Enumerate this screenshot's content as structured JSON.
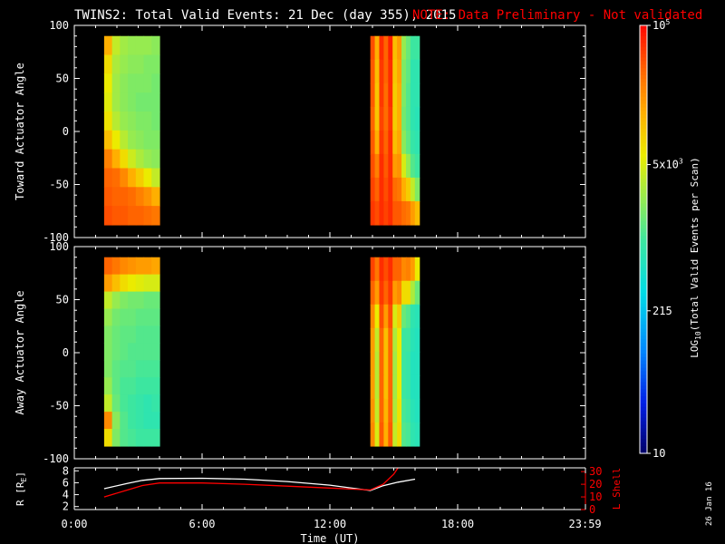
{
  "title": "TWINS2: Total Valid Events: 21 Dec (day 355), 2015",
  "note": "NOTE: Data Preliminary - Not validated",
  "stamp": "26 Jan 16",
  "colors": {
    "background": "#000000",
    "axes": "#ffffff",
    "note": "#ff0000",
    "r_line": "#ffffff",
    "lshell_line": "#ff0000"
  },
  "colorbar": {
    "label": "LOG10(Total Valid Events per Scan)",
    "label_main": "LOG",
    "label_sub": "10",
    "label_rest": "(Total Valid Events per Scan)",
    "scale": "log",
    "range": [
      10,
      100000
    ],
    "ticks": [
      {
        "value": 100000,
        "label": "10^5",
        "base": "10",
        "exp": "5"
      },
      {
        "value": 5000,
        "label": "5x10^3",
        "base": "5x10",
        "exp": "3"
      },
      {
        "value": 215,
        "label": "215",
        "base": "215",
        "exp": ""
      },
      {
        "value": 10,
        "label": "10",
        "base": "10",
        "exp": ""
      }
    ],
    "colormap": "rainbow"
  },
  "chart_data": [
    {
      "type": "heatmap",
      "name": "toward",
      "ylabel": "Toward Actuator Angle",
      "ylim": [
        -100,
        100
      ],
      "yticks": [
        100,
        50,
        0,
        -50,
        -100
      ],
      "xlim": [
        0,
        24
      ],
      "blocks": [
        {
          "t_start": 1.4,
          "t_end": 4.0,
          "angle_min": -88,
          "angle_max": 90,
          "t_columns": [
            1.4,
            1.8,
            2.2,
            2.6,
            3.0,
            3.4,
            3.8
          ],
          "angles": [
            90,
            70,
            50,
            30,
            10,
            -10,
            -30,
            -50,
            -70,
            -88
          ],
          "log_values": [
            [
              4.2,
              3.6,
              3.45,
              3.4,
              3.4,
              3.4,
              3.35
            ],
            [
              3.9,
              3.5,
              3.4,
              3.35,
              3.35,
              3.3,
              3.3
            ],
            [
              3.8,
              3.45,
              3.35,
              3.3,
              3.3,
              3.3,
              3.25
            ],
            [
              3.75,
              3.45,
              3.35,
              3.3,
              3.25,
              3.25,
              3.25
            ],
            [
              3.85,
              3.55,
              3.4,
              3.35,
              3.3,
              3.3,
              3.25
            ],
            [
              4.1,
              3.8,
              3.55,
              3.4,
              3.35,
              3.3,
              3.3
            ],
            [
              4.45,
              4.2,
              3.9,
              3.65,
              3.5,
              3.4,
              3.35
            ],
            [
              4.6,
              4.55,
              4.4,
              4.2,
              4.0,
              3.8,
              3.6
            ],
            [
              4.65,
              4.6,
              4.6,
              4.55,
              4.45,
              4.35,
              4.2
            ],
            [
              4.7,
              4.65,
              4.65,
              4.6,
              4.6,
              4.55,
              4.5
            ]
          ]
        },
        {
          "t_start": 13.9,
          "t_end": 16.2,
          "angle_min": -88,
          "angle_max": 90,
          "t_columns": [
            13.9,
            14.1,
            14.3,
            14.5,
            14.7,
            14.9,
            15.1,
            15.3,
            15.5,
            15.7,
            15.95
          ],
          "angles": [
            90,
            60,
            30,
            0,
            -30,
            -50,
            -70,
            -88
          ],
          "log_values": [
            [
              4.7,
              4.2,
              4.85,
              4.6,
              4.9,
              4.1,
              4.3,
              3.4,
              3.2,
              3.0,
              3.0
            ],
            [
              4.65,
              4.1,
              4.8,
              4.6,
              4.85,
              4.05,
              4.25,
              3.3,
              3.15,
              2.9,
              2.9
            ],
            [
              4.65,
              4.05,
              4.8,
              4.55,
              4.85,
              4.0,
              4.2,
              3.3,
              3.1,
              2.9,
              2.9
            ],
            [
              4.6,
              4.05,
              4.75,
              4.55,
              4.8,
              4.0,
              4.2,
              3.25,
              3.1,
              2.9,
              2.85
            ],
            [
              4.65,
              4.2,
              4.8,
              4.6,
              4.85,
              4.1,
              4.25,
              3.35,
              3.15,
              2.95,
              2.9
            ],
            [
              4.7,
              4.45,
              4.85,
              4.65,
              4.85,
              4.3,
              4.35,
              3.7,
              3.4,
              3.1,
              3.0
            ],
            [
              4.75,
              4.6,
              4.85,
              4.7,
              4.85,
              4.55,
              4.5,
              4.2,
              4.0,
              3.6,
              3.3
            ],
            [
              4.8,
              4.7,
              4.85,
              4.75,
              4.85,
              4.65,
              4.65,
              4.55,
              4.5,
              4.3,
              4.1
            ]
          ]
        }
      ]
    },
    {
      "type": "heatmap",
      "name": "away",
      "ylabel": "Away Actuator Angle",
      "ylim": [
        -100,
        100
      ],
      "yticks": [
        100,
        50,
        0,
        -50,
        -100
      ],
      "xlim": [
        0,
        24
      ],
      "blocks": [
        {
          "t_start": 1.4,
          "t_end": 4.0,
          "angle_min": -88,
          "angle_max": 90,
          "t_columns": [
            1.4,
            1.8,
            2.2,
            2.6,
            3.0,
            3.4,
            3.8
          ],
          "angles": [
            90,
            75,
            60,
            40,
            20,
            0,
            -20,
            -40,
            -60,
            -75,
            -88
          ],
          "log_values": [
            [
              4.6,
              4.5,
              4.4,
              4.35,
              4.3,
              4.3,
              4.25
            ],
            [
              4.3,
              4.1,
              3.9,
              3.8,
              3.75,
              3.7,
              3.7
            ],
            [
              3.6,
              3.4,
              3.3,
              3.25,
              3.25,
              3.2,
              3.2
            ],
            [
              3.4,
              3.25,
              3.2,
              3.2,
              3.15,
              3.15,
              3.15
            ],
            [
              3.3,
              3.2,
              3.15,
              3.15,
              3.1,
              3.1,
              3.1
            ],
            [
              3.3,
              3.2,
              3.15,
              3.1,
              3.1,
              3.1,
              3.1
            ],
            [
              3.3,
              3.15,
              3.1,
              3.1,
              3.05,
              3.05,
              3.05
            ],
            [
              3.4,
              3.15,
              3.05,
              3.05,
              3.0,
              3.0,
              3.0
            ],
            [
              3.6,
              3.2,
              3.05,
              3.0,
              2.95,
              2.9,
              2.95
            ],
            [
              4.4,
              3.35,
              3.1,
              3.0,
              2.95,
              2.9,
              2.9
            ],
            [
              3.9,
              3.3,
              3.1,
              3.05,
              3.0,
              3.0,
              3.0
            ]
          ]
        },
        {
          "t_start": 13.9,
          "t_end": 16.2,
          "angle_min": -88,
          "angle_max": 90,
          "t_columns": [
            13.9,
            14.1,
            14.3,
            14.5,
            14.7,
            14.9,
            15.1,
            15.3,
            15.5,
            15.7,
            15.95
          ],
          "angles": [
            90,
            75,
            60,
            30,
            0,
            -30,
            -60,
            -88
          ],
          "log_values": [
            [
              4.75,
              4.5,
              4.85,
              4.7,
              4.85,
              4.6,
              4.6,
              4.4,
              4.45,
              4.3,
              3.8
            ],
            [
              4.6,
              4.3,
              4.8,
              4.6,
              4.8,
              4.3,
              4.4,
              3.9,
              3.9,
              3.5,
              3.2
            ],
            [
              4.4,
              3.8,
              4.7,
              4.3,
              4.7,
              3.7,
              4.0,
              3.2,
              3.1,
              2.9,
              2.85
            ],
            [
              4.3,
              3.6,
              4.6,
              4.1,
              4.6,
              3.5,
              3.8,
              3.0,
              3.0,
              2.85,
              2.8
            ],
            [
              4.3,
              3.55,
              4.6,
              4.1,
              4.6,
              3.45,
              3.8,
              3.0,
              2.95,
              2.8,
              2.8
            ],
            [
              4.3,
              3.55,
              4.6,
              4.1,
              4.6,
              3.45,
              3.8,
              3.0,
              2.95,
              2.8,
              2.8
            ],
            [
              4.35,
              3.6,
              4.6,
              4.15,
              4.6,
              3.5,
              3.85,
              3.05,
              3.0,
              2.85,
              2.8
            ],
            [
              4.4,
              3.7,
              4.65,
              4.2,
              4.65,
              3.6,
              3.9,
              3.1,
              3.05,
              2.9,
              2.85
            ]
          ]
        }
      ]
    },
    {
      "type": "line",
      "name": "orbit",
      "xlabel": "Time (UT)",
      "xlim": [
        0,
        24
      ],
      "xticks": [
        {
          "value": 0,
          "label": "0:00"
        },
        {
          "value": 6,
          "label": "6:00"
        },
        {
          "value": 12,
          "label": "12:00"
        },
        {
          "value": 18,
          "label": "18:00"
        },
        {
          "value": 23.983,
          "label": "23:59"
        }
      ],
      "ylabel": "R [RE]",
      "ylabel_main": "R [R",
      "ylabel_sub": "E",
      "ylabel_end": "]",
      "ylim": [
        1.5,
        8.5
      ],
      "yticks": [
        2,
        4,
        6,
        8
      ],
      "y2label": "L Shell",
      "y2lim": [
        0,
        33
      ],
      "y2ticks": [
        0,
        10,
        20,
        30
      ],
      "series": [
        {
          "axis": "left",
          "x": [
            1.4,
            2.5,
            3.2,
            4.0,
            6.0,
            8.0,
            10.0,
            12.0,
            13.9,
            14.5,
            15.2,
            16.0
          ],
          "y": [
            5.0,
            5.9,
            6.4,
            6.7,
            6.75,
            6.6,
            6.2,
            5.6,
            4.7,
            5.5,
            6.1,
            6.6
          ]
        },
        {
          "axis": "right",
          "x": [
            1.4,
            2.5,
            3.2,
            4.0,
            6.0,
            8.0,
            10.0,
            12.0,
            13.9,
            14.5,
            15.0,
            15.2
          ],
          "y": [
            10.0,
            15.5,
            19.0,
            21.0,
            21.0,
            20.0,
            18.5,
            17.0,
            15.5,
            20.0,
            28.0,
            33.0
          ]
        }
      ]
    }
  ]
}
